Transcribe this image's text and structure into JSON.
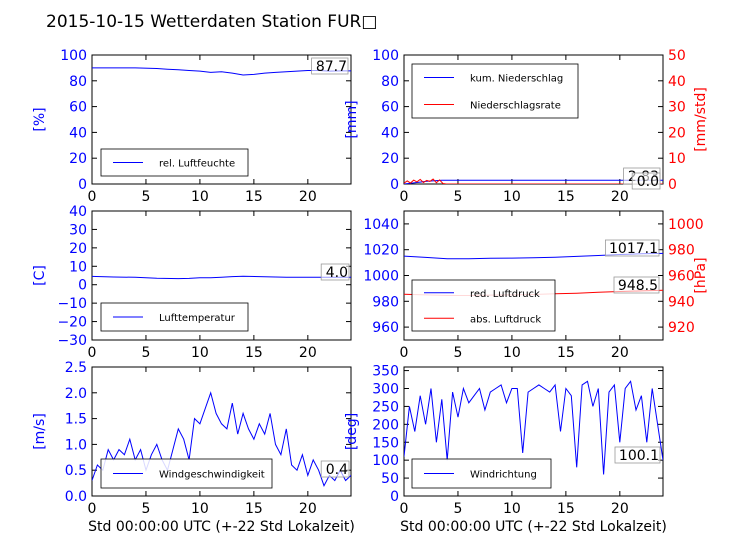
{
  "title": "2015-10-15 Wetterdaten Station FUR□",
  "colors": {
    "primary": "#0000ff",
    "secondary": "#ff0000",
    "box": "#000000",
    "anno_box": "#999999"
  },
  "chart_data": [
    {
      "type": "line",
      "xlim": [
        0,
        24
      ],
      "ylim": [
        0,
        100
      ],
      "xticks": [
        "0",
        "5",
        "10",
        "15",
        "20"
      ],
      "yticks": [
        "0",
        "20",
        "40",
        "60",
        "80",
        "100"
      ],
      "ylabel": "[%]",
      "xlabel": "",
      "legend": "bottom-left",
      "annotation": "87.7",
      "series": [
        {
          "name": "rel. Luftfeuchte",
          "color": "#0000ff",
          "x": [
            0,
            2,
            4,
            6,
            7,
            8,
            9,
            10,
            11,
            12,
            13,
            14,
            15,
            16,
            17,
            18,
            19,
            20,
            21,
            22,
            23,
            24
          ],
          "y": [
            90,
            90,
            90,
            89.5,
            89,
            88.5,
            88,
            87.5,
            86.5,
            87,
            86,
            84.5,
            85,
            86,
            86.5,
            87,
            87.5,
            88,
            88,
            87.5,
            87.7,
            87.7
          ]
        }
      ]
    },
    {
      "type": "line",
      "xlim": [
        0,
        24
      ],
      "ylim": [
        0,
        100
      ],
      "y2lim": [
        0,
        50
      ],
      "xticks": [
        "0",
        "5",
        "10",
        "15",
        "20"
      ],
      "yticks": [
        "0",
        "20",
        "40",
        "60",
        "80",
        "100"
      ],
      "y2ticks": [
        "0",
        "10",
        "20",
        "30",
        "40",
        "50"
      ],
      "ylabel": "[mm]",
      "y2label": "[mm/std]",
      "xlabel": "",
      "legend": "top-left",
      "annotations": [
        "2.83",
        "0.0"
      ],
      "series": [
        {
          "name": "kum. Niederschlag",
          "color": "#0000ff",
          "axis": "left",
          "x": [
            0,
            0.5,
            1,
            1.5,
            2,
            2.5,
            3,
            3.5,
            4,
            24
          ],
          "y": [
            0,
            0.5,
            1,
            1.5,
            2,
            2.3,
            2.6,
            2.83,
            2.83,
            2.83
          ]
        },
        {
          "name": "Niederschlagsrate",
          "color": "#ff0000",
          "axis": "right",
          "x": [
            0,
            0.3,
            0.6,
            0.9,
            1.2,
            1.5,
            1.8,
            2.1,
            2.4,
            2.7,
            3.0,
            3.3,
            3.6,
            3.9,
            24
          ],
          "y": [
            0.3,
            1.2,
            0.4,
            1.5,
            0.8,
            1.8,
            0.6,
            1.4,
            1.0,
            1.9,
            0.5,
            1.6,
            0.2,
            0,
            0
          ]
        }
      ]
    },
    {
      "type": "line",
      "xlim": [
        0,
        24
      ],
      "ylim": [
        -30,
        40
      ],
      "xticks": [
        "0",
        "5",
        "10",
        "15",
        "20"
      ],
      "yticks": [
        "−30",
        "−20",
        "−10",
        "0",
        "10",
        "20",
        "30",
        "40"
      ],
      "ylabel": "[C]",
      "xlabel": "",
      "legend": "bottom-left",
      "annotation": "4.0",
      "series": [
        {
          "name": "Lufttemperatur",
          "color": "#0000ff",
          "x": [
            0,
            2,
            4,
            6,
            8,
            9,
            10,
            11,
            12,
            13,
            14,
            16,
            18,
            20,
            22,
            24
          ],
          "y": [
            4.5,
            4.2,
            4.0,
            3.5,
            3.3,
            3.4,
            3.8,
            3.8,
            4.1,
            4.4,
            4.6,
            4.3,
            4.1,
            4.0,
            4.0,
            4.0
          ]
        }
      ]
    },
    {
      "type": "line",
      "xlim": [
        0,
        24
      ],
      "ylim": [
        950,
        1050
      ],
      "y2lim": [
        910,
        1010
      ],
      "xticks": [
        "0",
        "5",
        "10",
        "15",
        "20"
      ],
      "yticks": [
        "960",
        "980",
        "1000",
        "1020",
        "1040"
      ],
      "y2ticks": [
        "920",
        "940",
        "960",
        "980",
        "1000"
      ],
      "ylabel": "",
      "y2label": "[hPa]",
      "xlabel": "",
      "legend": "bottom-left",
      "annotations": [
        "1017.1",
        "948.5"
      ],
      "series": [
        {
          "name": "red. Luftdruck",
          "color": "#0000ff",
          "axis": "left",
          "x": [
            0,
            2,
            4,
            6,
            8,
            10,
            12,
            14,
            16,
            18,
            20,
            22,
            24
          ],
          "y": [
            1015,
            1014,
            1013,
            1013,
            1013.3,
            1013.5,
            1013.8,
            1014.2,
            1014.8,
            1015.5,
            1016.3,
            1016.8,
            1017.1
          ]
        },
        {
          "name": "abs. Luftdruck",
          "color": "#ff0000",
          "axis": "right",
          "x": [
            0,
            2,
            4,
            6,
            8,
            10,
            12,
            14,
            16,
            18,
            20,
            22,
            24
          ],
          "y": [
            945.5,
            945,
            944.5,
            944.5,
            944.8,
            945,
            945.3,
            945.8,
            946.3,
            947,
            947.6,
            948.1,
            948.5
          ]
        }
      ]
    },
    {
      "type": "line",
      "xlim": [
        0,
        24
      ],
      "ylim": [
        0,
        2.5
      ],
      "xticks": [
        "0",
        "5",
        "10",
        "15",
        "20"
      ],
      "yticks": [
        "0.0",
        "0.5",
        "1.0",
        "1.5",
        "2.0",
        "2.5"
      ],
      "ylabel": "[m/s]",
      "xlabel": "Std 00:00:00 UTC (+-22 Std Lokalzeit)",
      "legend": "bottom-left",
      "annotation": "0.4",
      "series": [
        {
          "name": "Windgeschwindigkeit",
          "color": "#0000ff",
          "x": [
            0,
            0.5,
            1,
            1.5,
            2,
            2.5,
            3,
            3.5,
            4,
            4.5,
            5,
            5.5,
            6,
            6.5,
            7,
            7.5,
            8,
            8.5,
            9,
            9.5,
            10,
            10.5,
            11,
            11.5,
            12,
            12.5,
            13,
            13.5,
            14,
            14.5,
            15,
            15.5,
            16,
            16.5,
            17,
            17.5,
            18,
            18.5,
            19,
            19.5,
            20,
            20.5,
            21,
            21.5,
            22,
            22.5,
            23,
            23.5,
            24
          ],
          "y": [
            0.3,
            0.6,
            0.5,
            0.9,
            0.7,
            0.9,
            0.8,
            1.1,
            0.7,
            0.9,
            0.5,
            0.8,
            1.0,
            0.7,
            0.5,
            0.9,
            1.3,
            1.1,
            0.7,
            1.5,
            1.4,
            1.7,
            2.0,
            1.6,
            1.4,
            1.3,
            1.8,
            1.2,
            1.6,
            1.3,
            1.1,
            1.4,
            1.2,
            1.6,
            1.0,
            0.8,
            1.3,
            0.6,
            0.5,
            0.8,
            0.4,
            0.7,
            0.5,
            0.2,
            0.4,
            0.3,
            0.5,
            0.3,
            0.4
          ]
        }
      ]
    },
    {
      "type": "line",
      "xlim": [
        0,
        24
      ],
      "ylim": [
        0,
        360
      ],
      "xticks": [
        "0",
        "5",
        "10",
        "15",
        "20"
      ],
      "yticks": [
        "0",
        "50",
        "100",
        "150",
        "200",
        "250",
        "300",
        "350"
      ],
      "ylabel": "[deg]",
      "xlabel": "Std 00:00:00 UTC (+-22 Std Lokalzeit)",
      "legend": "bottom-left",
      "annotation": "100.1",
      "series": [
        {
          "name": "Windrichtung",
          "color": "#0000ff",
          "x": [
            0,
            0.5,
            1,
            1.5,
            2,
            2.5,
            3,
            3.5,
            4,
            4.5,
            5,
            5.5,
            6,
            6.5,
            7,
            7.5,
            8,
            8.5,
            9,
            9.5,
            10,
            10.5,
            11,
            11.5,
            12,
            12.5,
            13,
            13.5,
            14,
            14.5,
            15,
            15.5,
            16,
            16.5,
            17,
            17.5,
            18,
            18.5,
            19,
            19.5,
            20,
            20.5,
            21,
            21.5,
            22,
            22.5,
            23,
            23.5,
            24
          ],
          "y": [
            110,
            250,
            180,
            280,
            200,
            300,
            150,
            270,
            100,
            290,
            220,
            300,
            260,
            280,
            300,
            240,
            290,
            300,
            310,
            260,
            300,
            300,
            120,
            290,
            300,
            310,
            300,
            290,
            310,
            180,
            300,
            280,
            80,
            310,
            320,
            250,
            300,
            60,
            290,
            310,
            150,
            300,
            320,
            240,
            280,
            150,
            300,
            200,
            100
          ]
        }
      ]
    }
  ]
}
